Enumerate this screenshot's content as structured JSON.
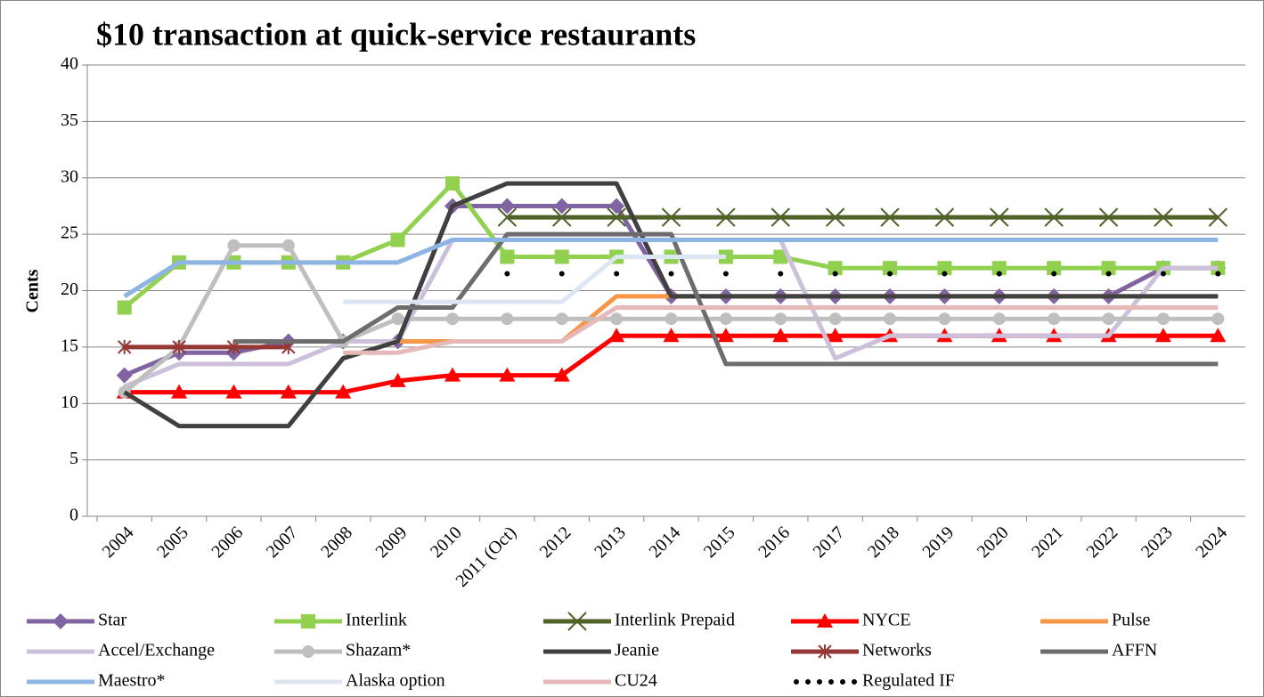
{
  "chart_data": {
    "type": "line",
    "title": "$10 transaction at quick-service restaurants",
    "y_label": "Cents",
    "categories": [
      "2004",
      "2005",
      "2006",
      "2007",
      "2008",
      "2009",
      "2010",
      "2011 (Oct)",
      "2012",
      "2013",
      "2014",
      "2015",
      "2016",
      "2017",
      "2018",
      "2019",
      "2020",
      "2021",
      "2022",
      "2023",
      "2024"
    ],
    "ylim": [
      0,
      40
    ],
    "yticks": [
      0,
      5,
      10,
      15,
      20,
      25,
      30,
      35,
      40
    ],
    "grid": true,
    "series": [
      {
        "name": "Star",
        "color": "#8064a2",
        "marker": "diamond",
        "values": [
          12.5,
          14.5,
          14.5,
          15.5,
          15.5,
          15.5,
          27.5,
          27.5,
          27.5,
          27.5,
          19.5,
          19.5,
          19.5,
          19.5,
          19.5,
          19.5,
          19.5,
          19.5,
          19.5,
          22,
          22
        ]
      },
      {
        "name": "Interlink",
        "color": "#92d050",
        "marker": "square",
        "values": [
          18.5,
          22.5,
          22.5,
          22.5,
          22.5,
          24.5,
          29.5,
          23,
          23,
          23,
          23,
          23,
          23,
          22,
          22,
          22,
          22,
          22,
          22,
          22,
          22
        ]
      },
      {
        "name": "Interlink Prepaid",
        "color": "#4f6228",
        "marker": "x",
        "values": [
          null,
          null,
          null,
          null,
          null,
          null,
          null,
          26.5,
          26.5,
          26.5,
          26.5,
          26.5,
          26.5,
          26.5,
          26.5,
          26.5,
          26.5,
          26.5,
          26.5,
          26.5,
          26.5
        ]
      },
      {
        "name": "NYCE",
        "color": "#ff0000",
        "marker": "triangle",
        "values": [
          11,
          11,
          11,
          11,
          11,
          12,
          12.5,
          12.5,
          12.5,
          16,
          16,
          16,
          16,
          16,
          16,
          16,
          16,
          16,
          16,
          16,
          16
        ]
      },
      {
        "name": "Pulse",
        "color": "#f79646",
        "marker": "none",
        "values": [
          null,
          null,
          null,
          null,
          15.5,
          15.5,
          15.5,
          15.5,
          15.5,
          19.5,
          19.5,
          19.5,
          19.5,
          19.5,
          19.5,
          19.5,
          19.5,
          19.5,
          19.5,
          19.5,
          19.5
        ]
      },
      {
        "name": "Accel/Exchange",
        "color": "#ccc0da",
        "marker": "none",
        "values": [
          11.5,
          13.5,
          13.5,
          13.5,
          15.5,
          15.5,
          24.5,
          24.5,
          24.5,
          24.5,
          24.5,
          24.5,
          24.5,
          14,
          16,
          16,
          16,
          16,
          16,
          22,
          22
        ]
      },
      {
        "name": "Shazam*",
        "color": "#bfbfbf",
        "marker": "circle",
        "values": [
          11,
          15,
          24,
          24,
          15.5,
          17.5,
          17.5,
          17.5,
          17.5,
          17.5,
          17.5,
          17.5,
          17.5,
          17.5,
          17.5,
          17.5,
          17.5,
          17.5,
          17.5,
          17.5,
          17.5
        ]
      },
      {
        "name": "Jeanie",
        "color": "#404040",
        "marker": "none",
        "values": [
          11,
          8,
          8,
          8,
          14,
          15.5,
          27.5,
          29.5,
          29.5,
          29.5,
          19.5,
          19.5,
          19.5,
          19.5,
          19.5,
          19.5,
          19.5,
          19.5,
          19.5,
          19.5,
          19.5
        ]
      },
      {
        "name": "Networks",
        "color": "#953735",
        "marker": "asterisk",
        "values": [
          15,
          15,
          15,
          15,
          null,
          null,
          null,
          null,
          null,
          null,
          null,
          null,
          null,
          null,
          null,
          null,
          null,
          null,
          null,
          null,
          null
        ]
      },
      {
        "name": "AFFN",
        "color": "#6d6d6d",
        "marker": "none",
        "values": [
          null,
          null,
          15.5,
          15.5,
          15.5,
          18.5,
          18.5,
          25,
          25,
          25,
          25,
          13.5,
          13.5,
          13.5,
          13.5,
          13.5,
          13.5,
          13.5,
          13.5,
          13.5,
          13.5
        ]
      },
      {
        "name": "Maestro*",
        "color": "#8db4e2",
        "marker": "none",
        "values": [
          19.5,
          22.5,
          22.5,
          22.5,
          22.5,
          22.5,
          24.5,
          24.5,
          24.5,
          24.5,
          24.5,
          24.5,
          24.5,
          24.5,
          24.5,
          24.5,
          24.5,
          24.5,
          24.5,
          24.5,
          24.5
        ]
      },
      {
        "name": "Alaska option",
        "color": "#dce6f2",
        "marker": "none",
        "values": [
          null,
          null,
          null,
          null,
          19,
          19,
          19,
          19,
          19,
          23,
          23,
          23,
          null,
          null,
          null,
          null,
          null,
          null,
          null,
          null,
          null
        ]
      },
      {
        "name": "CU24",
        "color": "#e6b9b8",
        "marker": "none",
        "values": [
          null,
          null,
          null,
          null,
          14.5,
          14.5,
          15.5,
          15.5,
          15.5,
          18.5,
          18.5,
          18.5,
          18.5,
          18.5,
          18.5,
          18.5,
          18.5,
          18.5,
          18.5,
          18.5,
          18.5
        ]
      },
      {
        "name": "Regulated IF",
        "color": "#000000",
        "marker": "none",
        "dotted": true,
        "values": [
          null,
          null,
          null,
          null,
          null,
          null,
          null,
          21.5,
          21.5,
          21.5,
          21.5,
          21.5,
          21.5,
          21.5,
          21.5,
          21.5,
          21.5,
          21.5,
          21.5,
          21.5,
          21.5
        ]
      }
    ]
  }
}
